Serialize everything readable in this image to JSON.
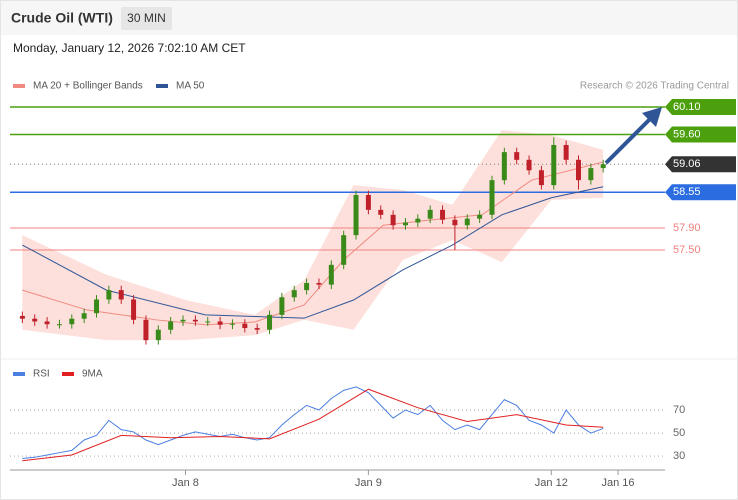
{
  "header": {
    "title": "Crude Oil (WTI)",
    "interval": "30 MIN",
    "timestamp": "Monday, January 12, 2026 7:02:10 AM CET",
    "credit": "Research © 2026 Trading Central"
  },
  "chart_data": [
    {
      "type": "candlestick",
      "legend": [
        {
          "name": "MA 20 + Bollinger Bands",
          "color": "#f08a80"
        },
        {
          "name": "MA 50",
          "color": "#2f5597"
        }
      ],
      "xlim": [
        -1,
        52
      ],
      "xticks": [
        {
          "value": 13.2,
          "label": "Jan 8"
        },
        {
          "value": 28,
          "label": "Jan 9"
        },
        {
          "value": 42.8,
          "label": "Jan 12"
        },
        {
          "value": 48.2,
          "label": "Jan 16"
        }
      ],
      "ylim": [
        55.59,
        60.41
      ],
      "up_color": "#3a8a1a",
      "down_color": "#c0202a",
      "open": [
        56.3,
        56.25,
        56.2,
        56.15,
        56.15,
        56.25,
        56.35,
        56.6,
        56.77,
        56.6,
        56.23,
        55.86,
        56.05,
        56.2,
        56.23,
        56.2,
        56.2,
        56.14,
        56.16,
        56.08,
        56.05,
        56.32,
        56.64,
        56.77,
        56.9,
        56.87,
        57.23,
        57.77,
        58.5,
        58.23,
        58.14,
        57.95,
        58.0,
        58.07,
        58.23,
        58.05,
        57.95,
        58.07,
        58.14,
        58.77,
        59.28,
        59.14,
        58.95,
        58.68,
        59.41,
        59.14,
        58.77,
        58.99
      ],
      "high": [
        56.38,
        56.33,
        56.28,
        56.23,
        56.33,
        56.43,
        56.68,
        56.85,
        56.85,
        56.68,
        56.31,
        56.13,
        56.28,
        56.31,
        56.31,
        56.28,
        56.28,
        56.24,
        56.24,
        56.16,
        56.4,
        56.72,
        56.85,
        56.98,
        56.98,
        57.31,
        57.85,
        58.58,
        58.58,
        58.31,
        58.22,
        58.08,
        58.15,
        58.31,
        58.31,
        58.13,
        58.15,
        58.22,
        58.85,
        59.36,
        59.36,
        59.22,
        59.03,
        59.55,
        59.49,
        59.22,
        59.07,
        59.14
      ],
      "low": [
        56.17,
        56.12,
        56.07,
        56.07,
        56.07,
        56.17,
        56.27,
        56.52,
        56.52,
        56.15,
        55.78,
        55.78,
        55.97,
        56.12,
        56.12,
        56.12,
        56.06,
        56.06,
        56.0,
        55.97,
        55.97,
        56.24,
        56.56,
        56.69,
        56.79,
        56.79,
        57.15,
        57.69,
        58.15,
        58.06,
        57.87,
        57.87,
        57.92,
        57.99,
        57.97,
        57.5,
        57.87,
        57.99,
        58.06,
        58.69,
        59.06,
        58.87,
        58.6,
        58.6,
        59.06,
        58.6,
        58.69,
        58.91
      ],
      "close": [
        56.25,
        56.2,
        56.15,
        56.15,
        56.25,
        56.35,
        56.6,
        56.77,
        56.6,
        56.23,
        55.86,
        56.05,
        56.2,
        56.23,
        56.2,
        56.2,
        56.14,
        56.16,
        56.08,
        56.05,
        56.32,
        56.64,
        56.77,
        56.9,
        56.87,
        57.23,
        57.77,
        58.5,
        58.23,
        58.14,
        57.95,
        58.0,
        58.07,
        58.23,
        58.05,
        57.95,
        58.07,
        58.14,
        58.77,
        59.28,
        59.14,
        58.95,
        58.68,
        59.41,
        59.14,
        58.77,
        58.99,
        59.06
      ],
      "bollinger": {
        "color": "#fde0dc",
        "x": [
          0,
          6.8,
          13.2,
          18.8,
          22.8,
          26.8,
          30.8,
          34.8,
          38.8,
          42.8,
          47
        ],
        "upper": [
          57.77,
          57.05,
          56.59,
          56.32,
          56.95,
          58.68,
          58.59,
          58.32,
          59.68,
          59.59,
          59.32
        ],
        "lower": [
          56.05,
          55.86,
          55.86,
          55.95,
          56.23,
          56.05,
          57.32,
          57.68,
          57.28,
          58.41,
          58.45
        ]
      },
      "series": [
        {
          "name": "MA 20",
          "color": "#f08a80",
          "x": [
            0,
            5.2,
            10.8,
            14.8,
            18.8,
            22.8,
            26,
            29.2,
            33.2,
            37.2,
            41.2,
            47
          ],
          "values": [
            56.77,
            56.41,
            56.23,
            56.14,
            56.19,
            56.5,
            57.32,
            57.95,
            58.05,
            58.14,
            58.77,
            59.1
          ]
        },
        {
          "name": "MA 50",
          "color": "#2f5597",
          "x": [
            0,
            6.8,
            14.8,
            22.8,
            26.8,
            30.8,
            34.8,
            38.8,
            42.8,
            47
          ],
          "values": [
            57.59,
            56.77,
            56.32,
            56.26,
            56.59,
            57.14,
            57.59,
            58.14,
            58.45,
            58.65
          ]
        }
      ],
      "levels": [
        {
          "value": 60.1,
          "label": "60.10",
          "color": "#4ca00e",
          "tag": true,
          "style": "solid"
        },
        {
          "value": 59.6,
          "label": "59.60",
          "color": "#4ca00e",
          "tag": true,
          "style": "solid"
        },
        {
          "value": 59.06,
          "label": "59.06",
          "color": "#333333",
          "tag": true,
          "style": "dotted"
        },
        {
          "value": 58.55,
          "label": "58.55",
          "color": "#2b6de0",
          "tag": true,
          "style": "solid"
        },
        {
          "value": 57.9,
          "label": "57.90",
          "color": "#f08080",
          "tag": false,
          "style": "solid"
        },
        {
          "value": 57.5,
          "label": "57.50",
          "color": "#f08080",
          "tag": false,
          "style": "solid"
        }
      ]
    },
    {
      "type": "line",
      "xlim": [
        -1,
        52
      ],
      "ylim": [
        18,
        96
      ],
      "yticks": [
        70,
        50,
        30
      ],
      "grid": true,
      "series": [
        {
          "name": "RSI",
          "color": "#4a7ee0",
          "values": [
            28,
            29,
            31,
            33,
            35,
            44,
            48,
            61,
            53,
            51,
            44,
            40,
            44,
            48,
            51,
            49,
            47,
            49,
            46,
            44,
            46,
            57,
            66,
            74,
            70,
            80,
            87,
            90,
            85,
            74,
            63,
            70,
            66,
            74,
            61,
            53,
            57,
            53,
            66,
            79,
            74,
            61,
            57,
            50,
            70,
            57,
            50,
            54
          ]
        },
        {
          "name": "9MA",
          "color": "#e02020",
          "x": [
            0,
            4,
            8,
            12,
            16,
            20,
            24,
            28,
            32,
            36,
            40,
            44,
            47
          ],
          "values": [
            26,
            31,
            48,
            46,
            47,
            45,
            62,
            88,
            72,
            60,
            66,
            57,
            55
          ]
        }
      ]
    }
  ]
}
